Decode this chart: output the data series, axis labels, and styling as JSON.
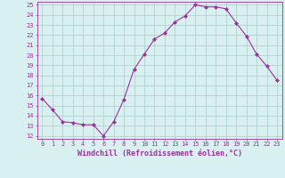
{
  "hours": [
    0,
    1,
    2,
    3,
    4,
    5,
    6,
    7,
    8,
    9,
    10,
    11,
    12,
    13,
    14,
    15,
    16,
    17,
    18,
    19,
    20,
    21,
    22,
    23
  ],
  "windchill": [
    15.7,
    14.6,
    13.4,
    13.3,
    13.1,
    13.1,
    12.0,
    13.4,
    15.6,
    18.6,
    20.1,
    21.6,
    22.2,
    23.3,
    23.9,
    25.0,
    24.8,
    24.8,
    24.6,
    23.2,
    21.9,
    20.1,
    18.9,
    17.5
  ],
  "line_color": "#993399",
  "marker": "D",
  "marker_size": 2.0,
  "bg_color": "#d9f0f0",
  "grid_color": "#aacccc",
  "xlabel": "Windchill (Refroidissement éolien,°C)",
  "xlabel_color": "#993399",
  "tick_color": "#993399",
  "ylim": [
    12,
    25
  ],
  "xlim": [
    -0.5,
    23.5
  ],
  "yticks": [
    12,
    13,
    14,
    15,
    16,
    17,
    18,
    19,
    20,
    21,
    22,
    23,
    24,
    25
  ],
  "xticks": [
    0,
    1,
    2,
    3,
    4,
    5,
    6,
    7,
    8,
    9,
    10,
    11,
    12,
    13,
    14,
    15,
    16,
    17,
    18,
    19,
    20,
    21,
    22,
    23
  ],
  "tick_fontsize": 5.0,
  "xlabel_fontsize": 6.0,
  "linewidth": 0.8
}
